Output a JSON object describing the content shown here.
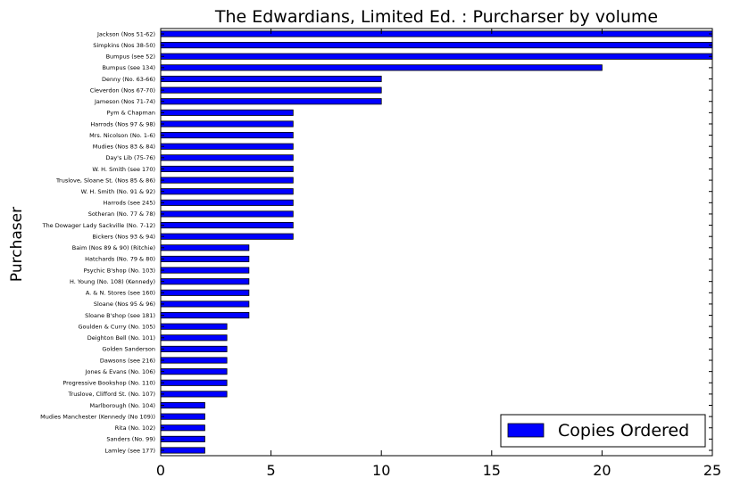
{
  "chart_data": {
    "type": "bar",
    "orientation": "horizontal",
    "title": "The Edwardians, Limited Ed. : Purcharser by volume",
    "xlabel": "",
    "ylabel": "Purchaser",
    "xlim": [
      0,
      25
    ],
    "xticks": [
      0,
      5,
      10,
      15,
      20,
      25
    ],
    "grid": false,
    "legend_position": "lower-right",
    "bar_color": "#0000ff",
    "categories": [
      "Jackson (Nos 51-62)",
      "Simpkins (Nos 38-50)",
      "Bumpus (see 52)",
      "Bumpus (see 134)",
      "Denny (No. 63-66)",
      "Cleverdon (Nos 67-70)",
      "Jameson (Nos 71-74)",
      "Pym & Chapman",
      "Harrods (Nos 97 & 98)",
      "Mrs. Nicolson (No. 1-6)",
      "Mudies (Nos 83 & 84)",
      "Day's Lib (75-76)",
      "W. H. Smith (see 170)",
      "Truslove, Sloane St. (Nos 85 & 86)",
      "W. H. Smith (No. 91 & 92)",
      "Harrods (see 245)",
      "Sotheran (No. 77 & 78)",
      "The Dowager Lady Sackville (No. 7-12)",
      "Bickers (Nos 93 & 94)",
      "Baim (Nos 89 & 90) (Ritchie)",
      "Hatchards (No. 79 & 80)",
      "Psychic B'shop (No. 103)",
      "H. Young (No. 108) (Kennedy)",
      "A. & N. Stores (see 160)",
      "Sloane (Nos 95 & 96)",
      "Sloane B'shop (see 181)",
      "Goulden & Curry (No. 105)",
      "Deighton Bell (No. 101)",
      "Golden Sanderson",
      "Dawsons (see 216)",
      "Jones & Evans (No. 106)",
      "Progressive Bookshop (No. 110)",
      "Truslove, Clifford St. (No. 107)",
      "Marlborough (No. 104)",
      "Mudies Manchester (Kennedy (No 109))",
      "Rita (No. 102)",
      "Sanders (No. 99)",
      "Lamley (see 177)"
    ],
    "series": [
      {
        "name": "Copies Ordered",
        "values": [
          25,
          25,
          25,
          20,
          10,
          10,
          10,
          6,
          6,
          6,
          6,
          6,
          6,
          6,
          6,
          6,
          6,
          6,
          6,
          4,
          4,
          4,
          4,
          4,
          4,
          4,
          3,
          3,
          3,
          3,
          3,
          3,
          3,
          2,
          2,
          2,
          2,
          2
        ]
      }
    ]
  }
}
